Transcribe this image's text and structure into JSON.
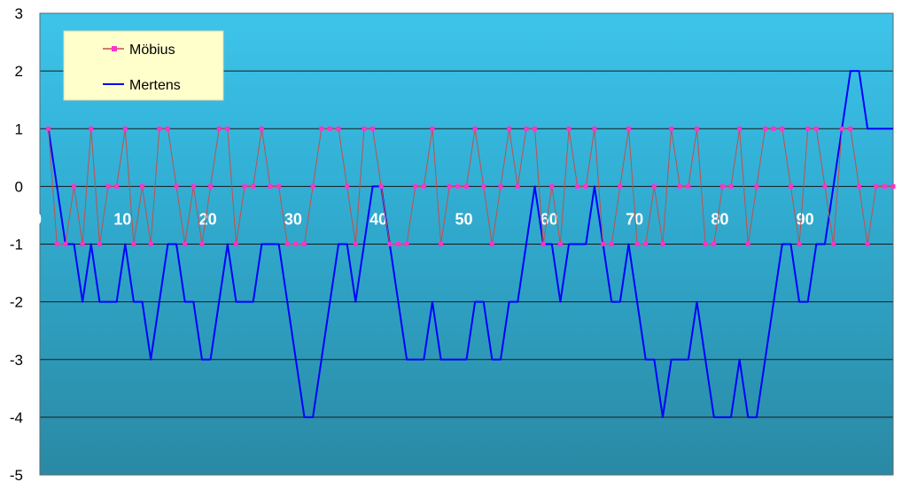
{
  "chart_data": {
    "type": "line",
    "title": "",
    "xlabel": "",
    "ylabel": "",
    "xlim": [
      0,
      100
    ],
    "ylim": [
      -5,
      3
    ],
    "y_ticks": [
      "3",
      "2",
      "1",
      "0",
      "-1",
      "-2",
      "-3",
      "-4",
      "-5"
    ],
    "x_ticks": [
      "0",
      "10",
      "20",
      "30",
      "40",
      "50",
      "60",
      "70",
      "80",
      "90"
    ],
    "grid": true,
    "legend_position": "top-left",
    "x": [
      1,
      2,
      3,
      4,
      5,
      6,
      7,
      8,
      9,
      10,
      11,
      12,
      13,
      14,
      15,
      16,
      17,
      18,
      19,
      20,
      21,
      22,
      23,
      24,
      25,
      26,
      27,
      28,
      29,
      30,
      31,
      32,
      33,
      34,
      35,
      36,
      37,
      38,
      39,
      40,
      41,
      42,
      43,
      44,
      45,
      46,
      47,
      48,
      49,
      50,
      51,
      52,
      53,
      54,
      55,
      56,
      57,
      58,
      59,
      60,
      61,
      62,
      63,
      64,
      65,
      66,
      67,
      68,
      69,
      70,
      71,
      72,
      73,
      74,
      75,
      76,
      77,
      78,
      79,
      80,
      81,
      82,
      83,
      84,
      85,
      86,
      87,
      88,
      89,
      90,
      91,
      92,
      93,
      94,
      95,
      96,
      97,
      98,
      99,
      100
    ],
    "series": [
      {
        "name": "Möbius",
        "color": "#c0504d",
        "marker_color": "#ff33cc",
        "values": [
          1,
          -1,
          -1,
          0,
          -1,
          1,
          -1,
          0,
          0,
          1,
          -1,
          0,
          -1,
          1,
          1,
          0,
          -1,
          0,
          -1,
          0,
          1,
          1,
          -1,
          0,
          0,
          1,
          0,
          0,
          -1,
          -1,
          -1,
          0,
          1,
          1,
          1,
          0,
          -1,
          1,
          1,
          0,
          -1,
          -1,
          -1,
          0,
          0,
          1,
          -1,
          0,
          0,
          0,
          1,
          0,
          -1,
          0,
          1,
          0,
          1,
          1,
          -1,
          0,
          -1,
          1,
          0,
          0,
          1,
          -1,
          -1,
          0,
          1,
          -1,
          -1,
          0,
          -1,
          1,
          0,
          0,
          1,
          -1,
          -1,
          0,
          0,
          1,
          -1,
          0,
          1,
          1,
          1,
          0,
          -1,
          1,
          1,
          0,
          -1,
          1,
          1,
          0,
          -1,
          0,
          0,
          0
        ]
      },
      {
        "name": "Mertens",
        "color": "#0000ff",
        "values": [
          1,
          0,
          -1,
          -1,
          -2,
          -1,
          -2,
          -2,
          -2,
          -1,
          -2,
          -2,
          -3,
          -2,
          -1,
          -1,
          -2,
          -2,
          -3,
          -3,
          -2,
          -1,
          -2,
          -2,
          -2,
          -1,
          -1,
          -1,
          -2,
          -3,
          -4,
          -4,
          -3,
          -2,
          -1,
          -1,
          -2,
          -1,
          0,
          0,
          -1,
          -2,
          -3,
          -3,
          -3,
          -2,
          -3,
          -3,
          -3,
          -3,
          -2,
          -2,
          -3,
          -3,
          -2,
          -2,
          -1,
          0,
          -1,
          -1,
          -2,
          -1,
          -1,
          -1,
          0,
          -1,
          -2,
          -2,
          -1,
          -2,
          -3,
          -3,
          -4,
          -3,
          -3,
          -3,
          -2,
          -3,
          -4,
          -4,
          -4,
          -3,
          -4,
          -4,
          -3,
          -2,
          -1,
          -1,
          -2,
          -2,
          -1,
          -1,
          0,
          1,
          2,
          2,
          1,
          1,
          1,
          1
        ]
      }
    ]
  }
}
